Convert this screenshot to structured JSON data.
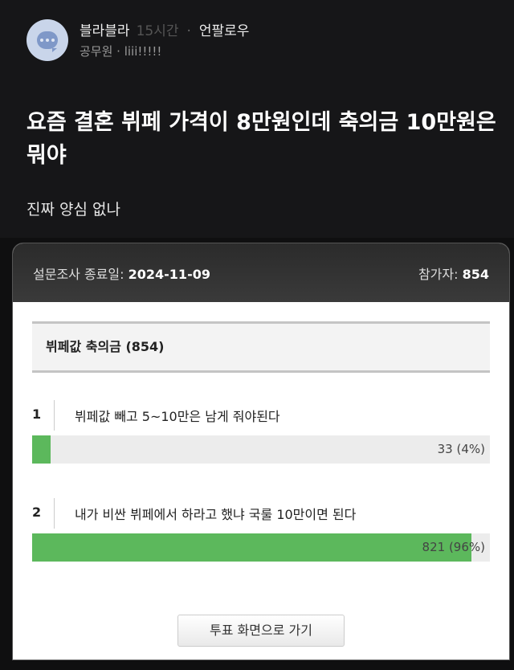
{
  "post": {
    "author": "블라블라",
    "time": "15시간",
    "unfollow": "언팔로우",
    "job": "공무원 · liii!!!!!",
    "title": "요즘 결혼 뷔페 가격이 8만원인데 축의금 10만원은 뭐야",
    "body": "진짜 양심 없나"
  },
  "poll": {
    "end_label": "설문조사 종료일:",
    "end_date": "2024-11-09",
    "participants_label": "참가자:",
    "participants": "854",
    "question": "뷔페값 축의금 (854)",
    "options": [
      {
        "num": "1",
        "label": "뷔페값 빼고 5~10만은 남게 줘야된다",
        "result": "33 (4%)",
        "percent": 4
      },
      {
        "num": "2",
        "label": "내가 비싼 뷔페에서 하라고 했냐 국룰 10만이면 된다",
        "result": "821 (96%)",
        "percent": 96
      }
    ],
    "vote_button": "투표 화면으로 가기",
    "bar_color": "#5cb85c"
  }
}
